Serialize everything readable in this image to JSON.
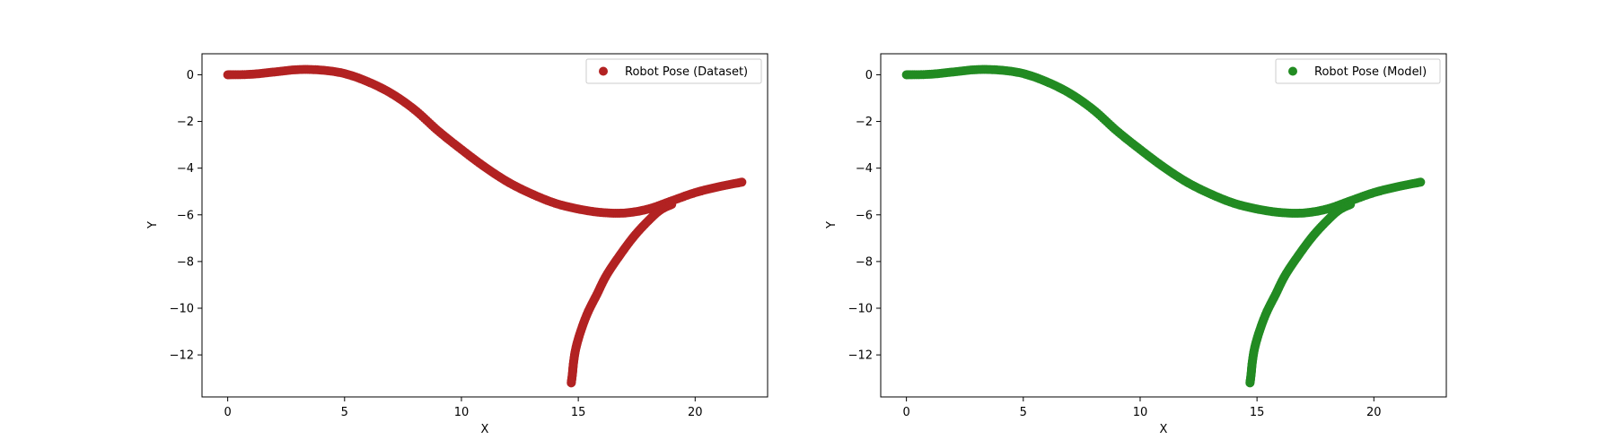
{
  "chart_data": [
    {
      "type": "scatter",
      "title": "",
      "xlabel": "X",
      "ylabel": "Y",
      "xlim": [
        -1.1,
        23.1
      ],
      "ylim": [
        -13.8,
        0.9
      ],
      "xticks": [
        0,
        5,
        10,
        15,
        20
      ],
      "yticks": [
        0,
        -2,
        -4,
        -6,
        -8,
        -10,
        -12
      ],
      "ytick_labels": [
        "0",
        "−2",
        "−4",
        "−6",
        "−8",
        "−10",
        "−12"
      ],
      "grid": false,
      "legend_position": "top-right",
      "series": [
        {
          "name": "Robot Pose (Dataset)",
          "color": "#b22222",
          "x": [
            0,
            1,
            2,
            3,
            4,
            5,
            6,
            7,
            8,
            9,
            10,
            11,
            12,
            13,
            14,
            15,
            16,
            17,
            18,
            19,
            20,
            21,
            22
          ],
          "y": [
            0,
            0.02,
            0.12,
            0.22,
            0.2,
            0.05,
            -0.3,
            -0.8,
            -1.5,
            -2.4,
            -3.2,
            -3.95,
            -4.6,
            -5.1,
            -5.5,
            -5.75,
            -5.9,
            -5.92,
            -5.75,
            -5.4,
            -5.05,
            -4.8,
            -4.6
          ],
          "branch_x": [
            19,
            18.5,
            18,
            17.4,
            16.8,
            16.2,
            15.8,
            15.4,
            15.1,
            14.9,
            14.8,
            14.75,
            14.7
          ],
          "branch_y": [
            -5.55,
            -5.8,
            -6.25,
            -6.9,
            -7.7,
            -8.6,
            -9.4,
            -10.2,
            -11,
            -11.7,
            -12.3,
            -12.8,
            -13.2
          ]
        }
      ]
    },
    {
      "type": "scatter",
      "title": "",
      "xlabel": "X",
      "ylabel": "Y",
      "xlim": [
        -1.1,
        23.1
      ],
      "ylim": [
        -13.8,
        0.9
      ],
      "xticks": [
        0,
        5,
        10,
        15,
        20
      ],
      "yticks": [
        0,
        -2,
        -4,
        -6,
        -8,
        -10,
        -12
      ],
      "ytick_labels": [
        "0",
        "−2",
        "−4",
        "−6",
        "−8",
        "−10",
        "−12"
      ],
      "grid": false,
      "legend_position": "top-right",
      "series": [
        {
          "name": "Robot Pose (Model)",
          "color": "#228b22",
          "x": [
            0,
            1,
            2,
            3,
            4,
            5,
            6,
            7,
            8,
            9,
            10,
            11,
            12,
            13,
            14,
            15,
            16,
            17,
            18,
            19,
            20,
            21,
            22
          ],
          "y": [
            0,
            0.02,
            0.12,
            0.22,
            0.2,
            0.05,
            -0.3,
            -0.8,
            -1.5,
            -2.4,
            -3.2,
            -3.95,
            -4.6,
            -5.1,
            -5.5,
            -5.75,
            -5.9,
            -5.92,
            -5.75,
            -5.4,
            -5.05,
            -4.8,
            -4.6
          ],
          "branch_x": [
            19,
            18.5,
            18,
            17.4,
            16.8,
            16.2,
            15.8,
            15.4,
            15.1,
            14.9,
            14.8,
            14.75,
            14.7
          ],
          "branch_y": [
            -5.55,
            -5.8,
            -6.25,
            -6.9,
            -7.7,
            -8.6,
            -9.4,
            -10.2,
            -11,
            -11.7,
            -12.3,
            -12.8,
            -13.2
          ]
        }
      ]
    }
  ]
}
